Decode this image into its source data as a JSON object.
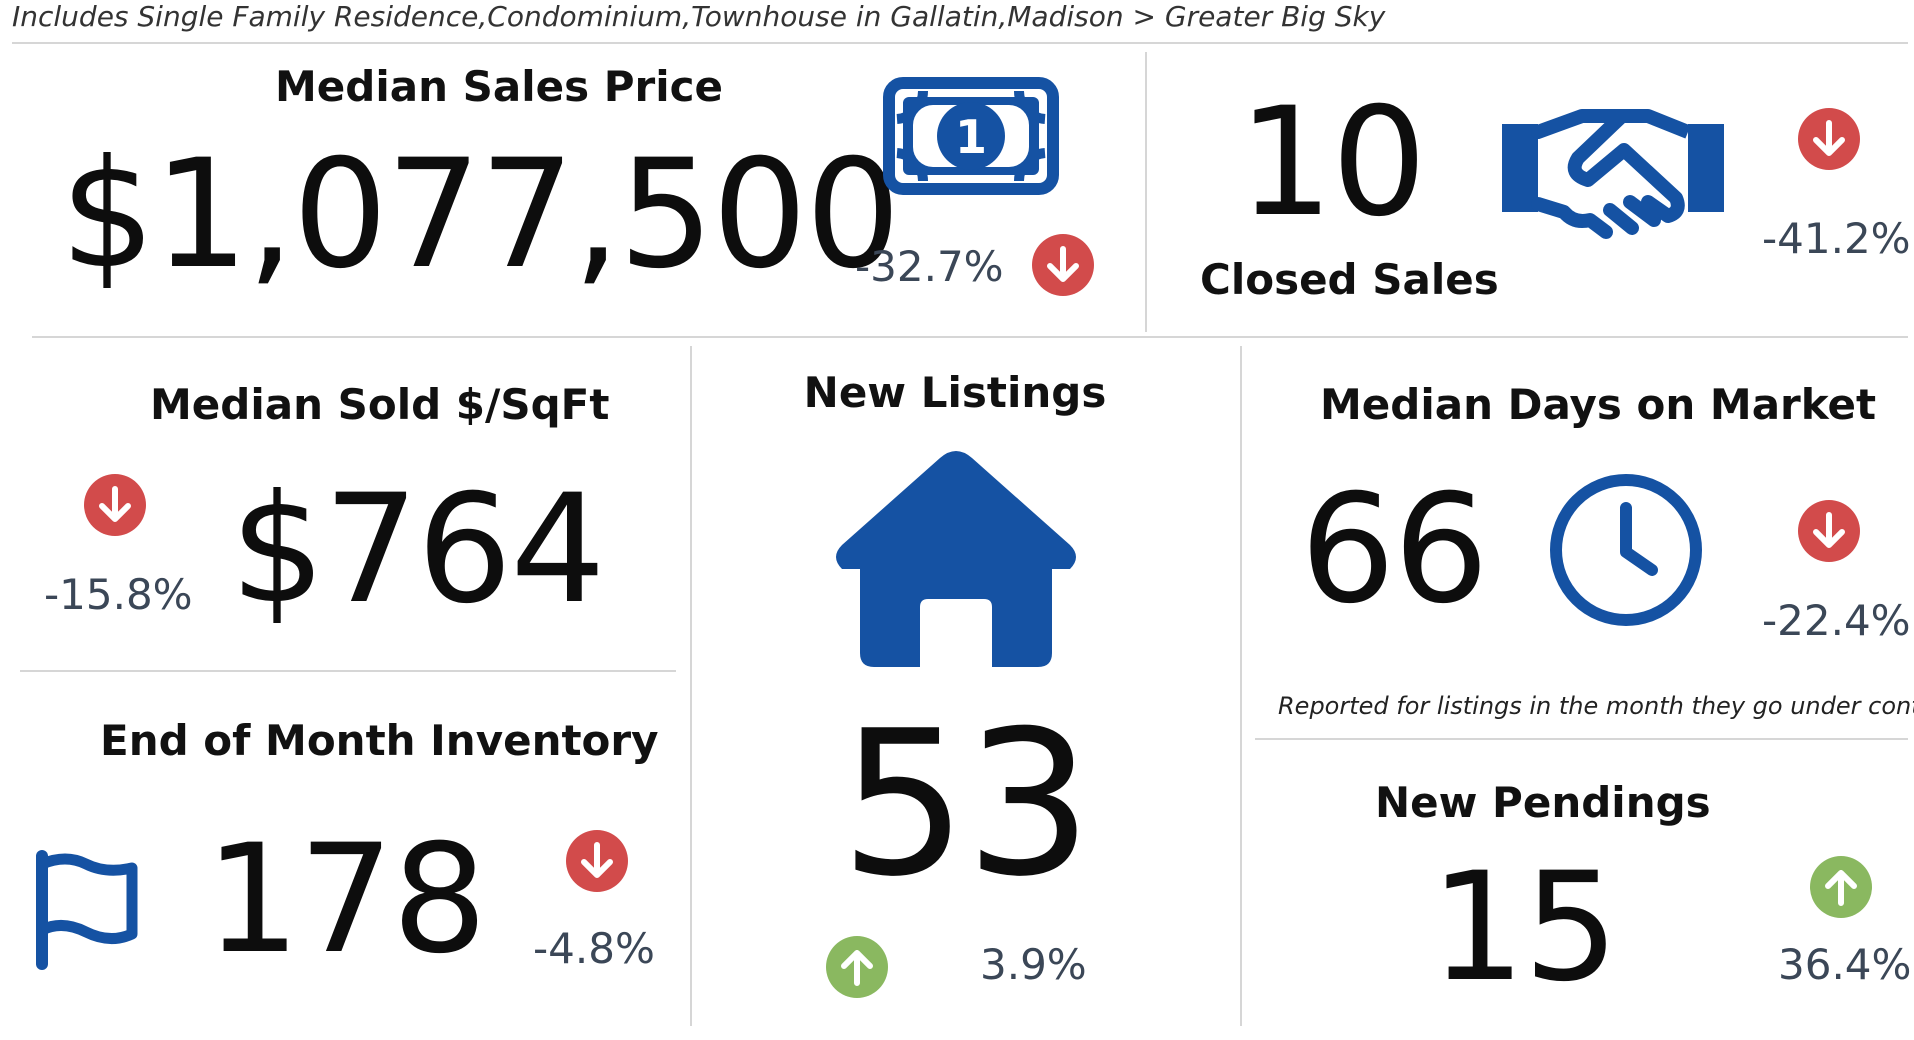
{
  "header": {
    "subtitle": "Includes Single Family Residence,Condominium,Townhouse in Gallatin,Madison > Greater Big Sky"
  },
  "colors": {
    "brand_blue": "#1552a3",
    "down_red": "#d24b4b",
    "up_green": "#8ab860",
    "divider": "#d6d6d6"
  },
  "median_sales_price": {
    "title": "Median Sales Price",
    "value": "$1,077,500",
    "change": "-32.7%",
    "direction": "down",
    "icon": "dollar-bill-icon"
  },
  "closed_sales": {
    "title": "Closed Sales",
    "value": "10",
    "change": "-41.2%",
    "direction": "down",
    "icon": "handshake-icon"
  },
  "median_sold_sqft": {
    "title": "Median Sold $/SqFt",
    "value": "$764",
    "change": "-15.8%",
    "direction": "down"
  },
  "new_listings": {
    "title": "New Listings",
    "value": "53",
    "change": "3.9%",
    "direction": "up",
    "icon": "house-icon"
  },
  "median_days_on_market": {
    "title": "Median Days on Market",
    "value": "66",
    "change": "-22.4%",
    "direction": "down",
    "note": "Reported for listings in the month they go under contract.",
    "icon": "clock-icon"
  },
  "end_of_month_inventory": {
    "title": "End of Month Inventory",
    "value": "178",
    "change": "-4.8%",
    "direction": "down",
    "icon": "flag-icon"
  },
  "new_pendings": {
    "title": "New Pendings",
    "value": "15",
    "change": "36.4%",
    "direction": "up"
  }
}
